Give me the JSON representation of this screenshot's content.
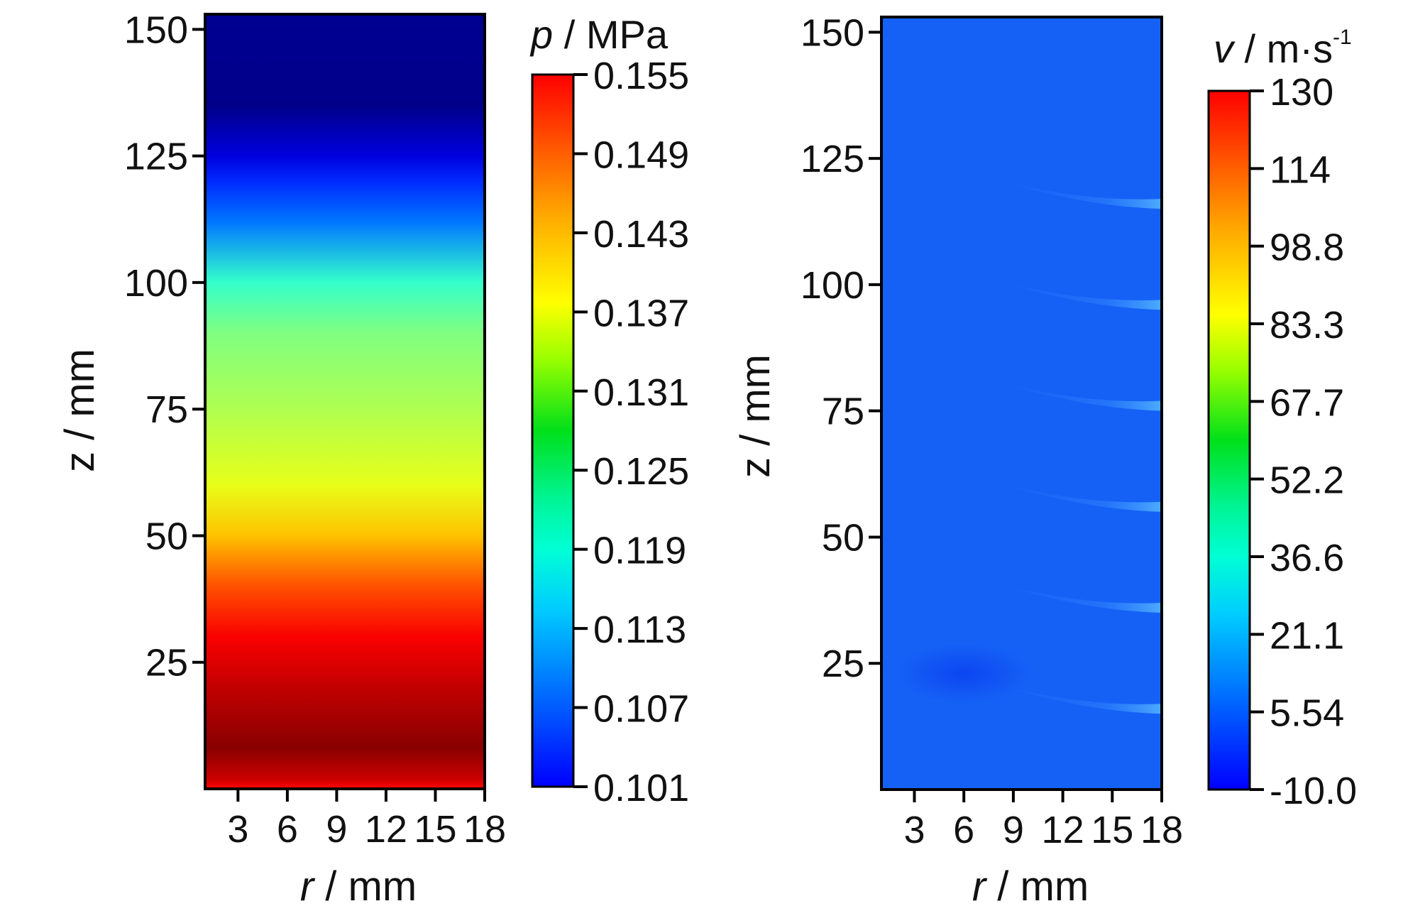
{
  "chart_data": [
    {
      "type": "heatmap",
      "x": [
        3,
        6,
        9,
        12,
        15,
        18
      ],
      "xlim": [
        1,
        18
      ],
      "ylim": [
        0,
        153
      ],
      "x_ticks": [
        "3",
        "6",
        "9",
        "12",
        "15",
        "18"
      ],
      "y_ticks": [
        "150",
        "125",
        "100",
        "75",
        "50",
        "25"
      ],
      "y_tick_values": [
        150,
        125,
        100,
        75,
        50,
        25
      ],
      "xlabel_var": "r",
      "xlabel_unit": " / mm",
      "ylabel": "z / mm",
      "colorbar": {
        "title_var": "p",
        "title_unit": " / MPa",
        "title_sup": "",
        "min": 0.101,
        "max": 0.155,
        "ticks": [
          "0.155",
          "0.149",
          "0.143",
          "0.137",
          "0.131",
          "0.125",
          "0.119",
          "0.113",
          "0.107",
          "0.101"
        ],
        "colormap": "jet"
      },
      "z_profile": [
        {
          "z": 0,
          "value": 0.148
        },
        {
          "z": 2,
          "value": 0.151
        },
        {
          "z": 8,
          "value": 0.1545
        },
        {
          "z": 20,
          "value": 0.1515
        },
        {
          "z": 30,
          "value": 0.1485
        },
        {
          "z": 40,
          "value": 0.144
        },
        {
          "z": 50,
          "value": 0.138
        },
        {
          "z": 60,
          "value": 0.1335
        },
        {
          "z": 75,
          "value": 0.1305
        },
        {
          "z": 90,
          "value": 0.128
        },
        {
          "z": 100,
          "value": 0.124
        },
        {
          "z": 112,
          "value": 0.114
        },
        {
          "z": 120,
          "value": 0.11
        },
        {
          "z": 125,
          "value": 0.106
        },
        {
          "z": 135,
          "value": 0.1015
        },
        {
          "z": 153,
          "value": 0.102
        }
      ]
    },
    {
      "type": "heatmap",
      "x": [
        3,
        6,
        9,
        12,
        15,
        18
      ],
      "xlim": [
        1,
        18
      ],
      "ylim": [
        0,
        153
      ],
      "x_ticks": [
        "3",
        "6",
        "9",
        "12",
        "15",
        "18"
      ],
      "y_ticks": [
        "150",
        "125",
        "100",
        "75",
        "50",
        "25"
      ],
      "y_tick_values": [
        150,
        125,
        100,
        75,
        50,
        25
      ],
      "xlabel_var": "r",
      "xlabel_unit": " / mm",
      "ylabel": "z / mm",
      "colorbar": {
        "title_var": "v",
        "title_unit": " / m·s",
        "title_sup": "-1",
        "min": -10.0,
        "max": 130,
        "ticks": [
          "130",
          "114",
          "98.8",
          "83.3",
          "67.7",
          "52.2",
          "36.6",
          "21.1",
          "5.54",
          "-10.0"
        ],
        "colormap": "jet"
      },
      "z_profile": [
        {
          "z": 0,
          "value": 10
        },
        {
          "z": 153,
          "value": 10
        }
      ],
      "wall_jets_z": [
        16,
        36,
        56,
        76,
        96,
        116
      ],
      "low_velocity_spot": {
        "r": 6,
        "z": 23,
        "value": 3
      }
    }
  ]
}
